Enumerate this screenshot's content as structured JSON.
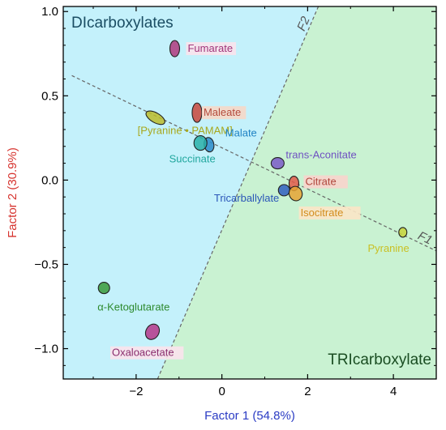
{
  "colors": {
    "dicarboxylate_region": "#c4f1fb",
    "tricarboxylate_region": "#c9f2d2",
    "dicarboxylate_title": "#1a4d63",
    "tricarboxylate_title": "#1a4d22",
    "xlabel": "#2b3cc4",
    "ylabel": "#d6332e"
  },
  "chart_data": {
    "type": "scatter",
    "xlabel": "Factor 1 (54.8%)",
    "ylabel": "Factor 2 (30.9%)",
    "xlim": [
      -3.7,
      5.0
    ],
    "ylim": [
      -1.18,
      1.03
    ],
    "xticks": [
      -2,
      0,
      2,
      4
    ],
    "yticks": [
      -1.0,
      -0.5,
      0.0,
      0.5,
      1.0
    ],
    "xtick_labels": [
      "−2",
      "0",
      "2",
      "4"
    ],
    "ytick_labels": [
      "−1.0",
      "−0.5",
      "0.0",
      "0.5",
      "1.0"
    ],
    "grid": false,
    "regions": [
      {
        "name": "DIcarboxylates",
        "label_position": "top-left",
        "color": "#c4f1fb"
      },
      {
        "name": "TRIcarboxylate",
        "label_position": "bottom-right",
        "color": "#c9f2d2"
      }
    ],
    "loading_lines": [
      {
        "name": "F1",
        "from": [
          -3.5,
          0.62
        ],
        "to": [
          5.0,
          -0.42
        ]
      },
      {
        "name": "F2",
        "from": [
          -1.5,
          -1.18
        ],
        "to": [
          2.25,
          1.03
        ]
      }
    ],
    "points": [
      {
        "label": "Fumarate",
        "x": -1.1,
        "y": 0.78,
        "color": "#b03a7c",
        "label_color": "#a0367a",
        "label_bg": "#fbe3ec"
      },
      {
        "label": "Maleate",
        "x": -0.58,
        "y": 0.4,
        "color": "#c9463b",
        "label_color": "#b44a3c",
        "label_bg": "#f6d8c8"
      },
      {
        "label": "[Pyranine • PAMAM]",
        "x": -1.55,
        "y": 0.37,
        "color": "#bcbc2a",
        "label_color": "#a8a81e",
        "label_bg": ""
      },
      {
        "label": "Malate",
        "x": -0.3,
        "y": 0.21,
        "color": "#2a8bc9",
        "label_color": "#1f82c4",
        "label_bg": ""
      },
      {
        "label": "Succinate",
        "x": -0.5,
        "y": 0.22,
        "color": "#2ab0a8",
        "label_color": "#1fa69d",
        "label_bg": ""
      },
      {
        "label": "trans-Aconitate",
        "x": 1.3,
        "y": 0.1,
        "color": "#7a5ac8",
        "label_color": "#6f51c1",
        "label_bg": ""
      },
      {
        "label": "Citrate",
        "x": 1.68,
        "y": -0.02,
        "color": "#e25a4a",
        "label_color": "#b0463c",
        "label_bg": "#f8d4cc"
      },
      {
        "label": "Tricarballylate",
        "x": 1.45,
        "y": -0.06,
        "color": "#2f5fbf",
        "label_color": "#2a56b8",
        "label_bg": ""
      },
      {
        "label": "Isocitrate",
        "x": 1.72,
        "y": -0.08,
        "color": "#e6a435",
        "label_color": "#d38c1d",
        "label_bg": "#fbe6c6"
      },
      {
        "label": "Pyranine",
        "x": 4.22,
        "y": -0.31,
        "color": "#c8d43a",
        "label_color": "#c9c023",
        "label_bg": ""
      },
      {
        "label": "α-Ketoglutarate",
        "x": -2.75,
        "y": -0.64,
        "color": "#3a9a3a",
        "label_color": "#2e8a2e",
        "label_bg": ""
      },
      {
        "label": "Oxaloacetate",
        "x": -1.62,
        "y": -0.9,
        "color": "#b5378a",
        "label_color": "#8a2e6e",
        "label_bg": "#fbe3ec"
      }
    ]
  }
}
